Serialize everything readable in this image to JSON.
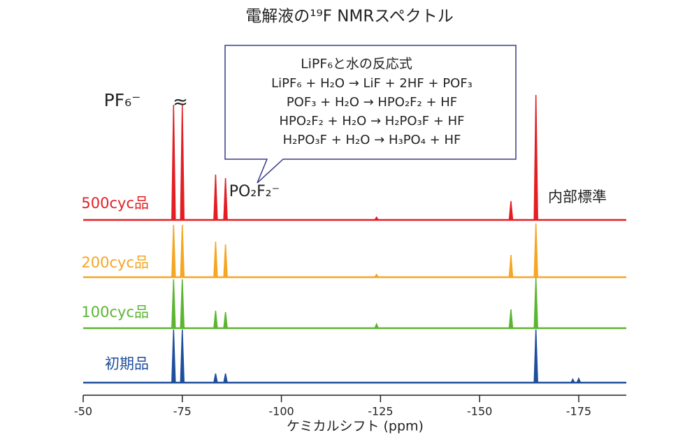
{
  "chart_data": {
    "type": "nmr-stack",
    "title": "電解液の¹⁹F NMRスペクトル",
    "x_label": "ケミカルシフト (ppm)",
    "xlim": [
      -50,
      -187
    ],
    "xticks": [
      -50,
      -75,
      -100,
      -125,
      -150,
      -175
    ],
    "series": [
      {
        "name": "500cyc品",
        "color": "#e31e24",
        "x": [
          -72.8,
          -75.0,
          -83.4,
          -85.9,
          -124,
          -157.9,
          -164.2
        ],
        "values": [
          165,
          165,
          65,
          60,
          4,
          27,
          179
        ]
      },
      {
        "name": "200cyc品",
        "color": "#f5a623",
        "x": [
          -72.8,
          -75.0,
          -83.4,
          -85.9,
          -124,
          -157.9,
          -164.2
        ],
        "values": [
          75,
          75,
          51,
          47,
          4,
          32,
          77
        ]
      },
      {
        "name": "100cyc品",
        "color": "#5cb531",
        "x": [
          -72.8,
          -75.0,
          -83.4,
          -85.9,
          -124,
          -157.9,
          -164.2
        ],
        "values": [
          70,
          70,
          25,
          23,
          6,
          27,
          72
        ]
      },
      {
        "name": "初期品",
        "color": "#1f4e9c",
        "x": [
          -72.8,
          -75.0,
          -83.4,
          -85.9,
          -164.2,
          -173.5,
          -175.0
        ],
        "values": [
          76,
          76,
          13,
          13,
          76,
          5,
          6
        ]
      }
    ],
    "annotations": {
      "pf6": "PF₆⁻",
      "po2f2": "PO₂F₂⁻",
      "standard": "内部標準",
      "box_title": "LiPF₆と水の反応式",
      "equations": [
        "LiPF₆ + H₂O → LiF + 2HF + POF₃",
        "POF₃ + H₂O → HPO₂F₂ + HF",
        "HPO₂F₂ + H₂O → H₂PO₃F + HF",
        "H₂PO₃F + H₂O → H₃PO₄ + HF"
      ]
    }
  }
}
